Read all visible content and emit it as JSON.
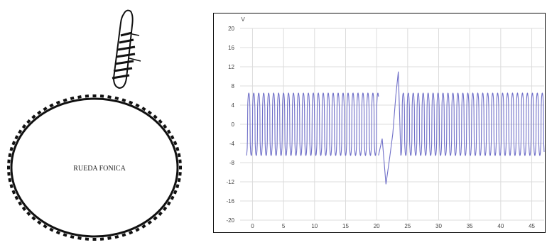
{
  "wheel": {
    "label": "RUEDA FONICA",
    "tooth_count": 72
  },
  "chart_data": {
    "type": "line",
    "y_unit": "V",
    "xlabel": "",
    "ylabel": "",
    "xlim": [
      -2,
      47
    ],
    "ylim": [
      -20,
      20
    ],
    "x_ticks": [
      0,
      5,
      10,
      15,
      20,
      25,
      30,
      35,
      40,
      45
    ],
    "x_tick_labels": [
      "0",
      "5",
      "10",
      "15",
      "20",
      "25",
      "30",
      "35",
      "40",
      "45"
    ],
    "y_ticks": [
      20,
      16,
      12,
      8,
      4,
      0,
      -4,
      -8,
      -12,
      -16,
      -20
    ],
    "y_tick_labels": [
      "20",
      "16",
      "12",
      "8",
      "4",
      "0",
      "-4",
      "-8",
      "-12",
      "-16",
      "-20"
    ],
    "grid": true,
    "series": [
      {
        "color": "#6f6fc8",
        "segments": [
          {
            "x_start": -1,
            "x_end": 20.3,
            "period": 0.8,
            "amplitude": 6.5
          },
          {
            "x_start": 23.9,
            "x_end": 47,
            "period": 0.8,
            "amplitude": 6.5
          }
        ],
        "gap_points": [
          [
            20.3,
            -6.5
          ],
          [
            20.9,
            -3
          ],
          [
            21.5,
            -12.5
          ],
          [
            22.1,
            -7
          ],
          [
            22.6,
            -2
          ],
          [
            23.1,
            6
          ],
          [
            23.5,
            11
          ],
          [
            23.9,
            -6.5
          ]
        ]
      }
    ]
  }
}
